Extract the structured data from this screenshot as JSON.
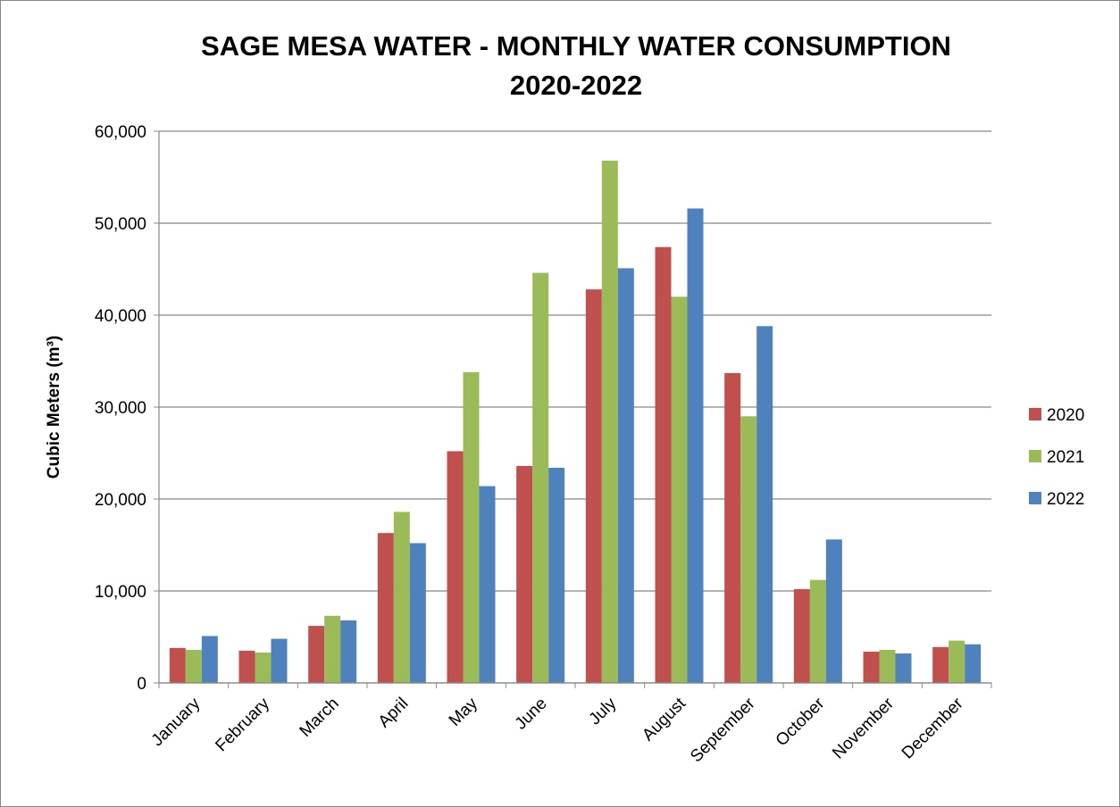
{
  "chart_data": {
    "type": "bar",
    "title": [
      "SAGE MESA WATER - MONTHLY WATER CONSUMPTION",
      "2020-2022"
    ],
    "y_label": "Cubic Meters (m³)",
    "categories": [
      "January",
      "February",
      "March",
      "April",
      "May",
      "June",
      "July",
      "August",
      "September",
      "October",
      "November",
      "December"
    ],
    "series": [
      {
        "name": "2020",
        "color": "#c0504d",
        "values": [
          3800,
          3500,
          6200,
          16300,
          25200,
          23600,
          42800,
          47400,
          33700,
          10200,
          3400,
          3900
        ]
      },
      {
        "name": "2021",
        "color": "#9bbb59",
        "values": [
          3600,
          3300,
          7300,
          18600,
          33800,
          44600,
          56800,
          42000,
          29000,
          11200,
          3600,
          4600
        ]
      },
      {
        "name": "2022",
        "color": "#4f81bd",
        "values": [
          5100,
          4800,
          6800,
          15200,
          21400,
          23400,
          45100,
          51600,
          38800,
          15600,
          3200,
          4200
        ]
      }
    ],
    "ylim": [
      0,
      60000
    ],
    "yticks": [
      0,
      {
        "value": 10000,
        "label": "10,000"
      },
      {
        "value": 20000,
        "label": "20,000"
      },
      {
        "value": 30000,
        "label": "30,000"
      },
      {
        "value": 40000,
        "label": "40,000"
      },
      {
        "value": 50000,
        "label": "50,000"
      },
      {
        "value": 60000,
        "label": "60,000"
      }
    ],
    "grid": true,
    "legend": "right"
  }
}
